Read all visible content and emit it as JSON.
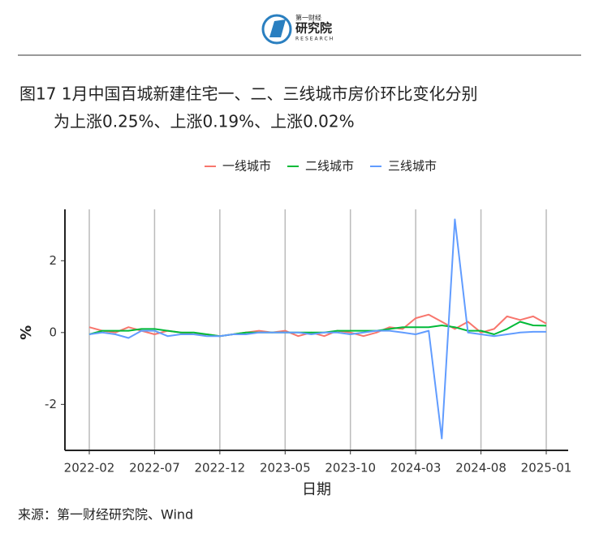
{
  "header": {
    "logo_cn_small": "第一财经",
    "logo_cn": "研究院",
    "logo_en": "RESEARCH"
  },
  "title_lines": [
    "图17 1月中国百城新建住宅一、二、三线城市房价环比变化分别",
    "为上涨0.25%、上涨0.19%、上涨0.02%"
  ],
  "source": "来源：第一财经研究院、Wind",
  "chart_data": {
    "type": "line",
    "x_label": "日期",
    "y_label": "%",
    "x": [
      "2022-02",
      "2022-03",
      "2022-04",
      "2022-05",
      "2022-06",
      "2022-07",
      "2022-08",
      "2022-09",
      "2022-10",
      "2022-11",
      "2022-12",
      "2023-01",
      "2023-02",
      "2023-03",
      "2023-04",
      "2023-05",
      "2023-06",
      "2023-07",
      "2023-08",
      "2023-09",
      "2023-10",
      "2023-11",
      "2023-12",
      "2024-01",
      "2024-02",
      "2024-03",
      "2024-04",
      "2024-05",
      "2024-06",
      "2024-07",
      "2024-08",
      "2024-09",
      "2024-10",
      "2024-11",
      "2024-12",
      "2025-01"
    ],
    "xticks": [
      "2022-02",
      "2022-07",
      "2022-12",
      "2023-05",
      "2023-10",
      "2024-03",
      "2024-08",
      "2025-01"
    ],
    "ylim": [
      -3.28,
      3.43
    ],
    "yticks": [
      -2,
      0,
      2
    ],
    "grid": "x",
    "legend": "top",
    "series": [
      {
        "name": "一线城市",
        "color": "#f8766d",
        "values": [
          0.15,
          0.05,
          0.0,
          0.15,
          0.05,
          -0.05,
          0.05,
          0.0,
          -0.05,
          -0.05,
          -0.1,
          -0.05,
          0.0,
          0.05,
          0.0,
          0.05,
          -0.1,
          0.0,
          -0.1,
          0.05,
          0.0,
          -0.1,
          0.0,
          0.15,
          0.1,
          0.4,
          0.5,
          0.3,
          0.1,
          0.3,
          0.0,
          0.1,
          0.45,
          0.35,
          0.45,
          0.25
        ]
      },
      {
        "name": "二线城市",
        "color": "#00ba38",
        "values": [
          -0.05,
          0.05,
          0.05,
          0.05,
          0.1,
          0.1,
          0.05,
          0.0,
          0.0,
          -0.05,
          -0.1,
          -0.05,
          0.0,
          0.0,
          0.0,
          0.0,
          0.0,
          0.0,
          0.0,
          0.05,
          0.05,
          0.05,
          0.05,
          0.1,
          0.15,
          0.15,
          0.15,
          0.2,
          0.15,
          0.05,
          0.05,
          -0.05,
          0.1,
          0.3,
          0.2,
          0.19
        ]
      },
      {
        "name": "三线城市",
        "color": "#619cff",
        "values": [
          -0.05,
          0.0,
          -0.05,
          -0.15,
          0.05,
          0.05,
          -0.1,
          -0.05,
          -0.05,
          -0.1,
          -0.1,
          -0.05,
          -0.05,
          0.0,
          0.0,
          0.0,
          0.0,
          -0.05,
          0.0,
          0.0,
          -0.05,
          0.0,
          0.05,
          0.05,
          0.0,
          -0.05,
          0.05,
          -2.95,
          3.15,
          0.0,
          -0.05,
          -0.1,
          -0.05,
          0.0,
          0.02,
          0.02
        ]
      }
    ]
  }
}
